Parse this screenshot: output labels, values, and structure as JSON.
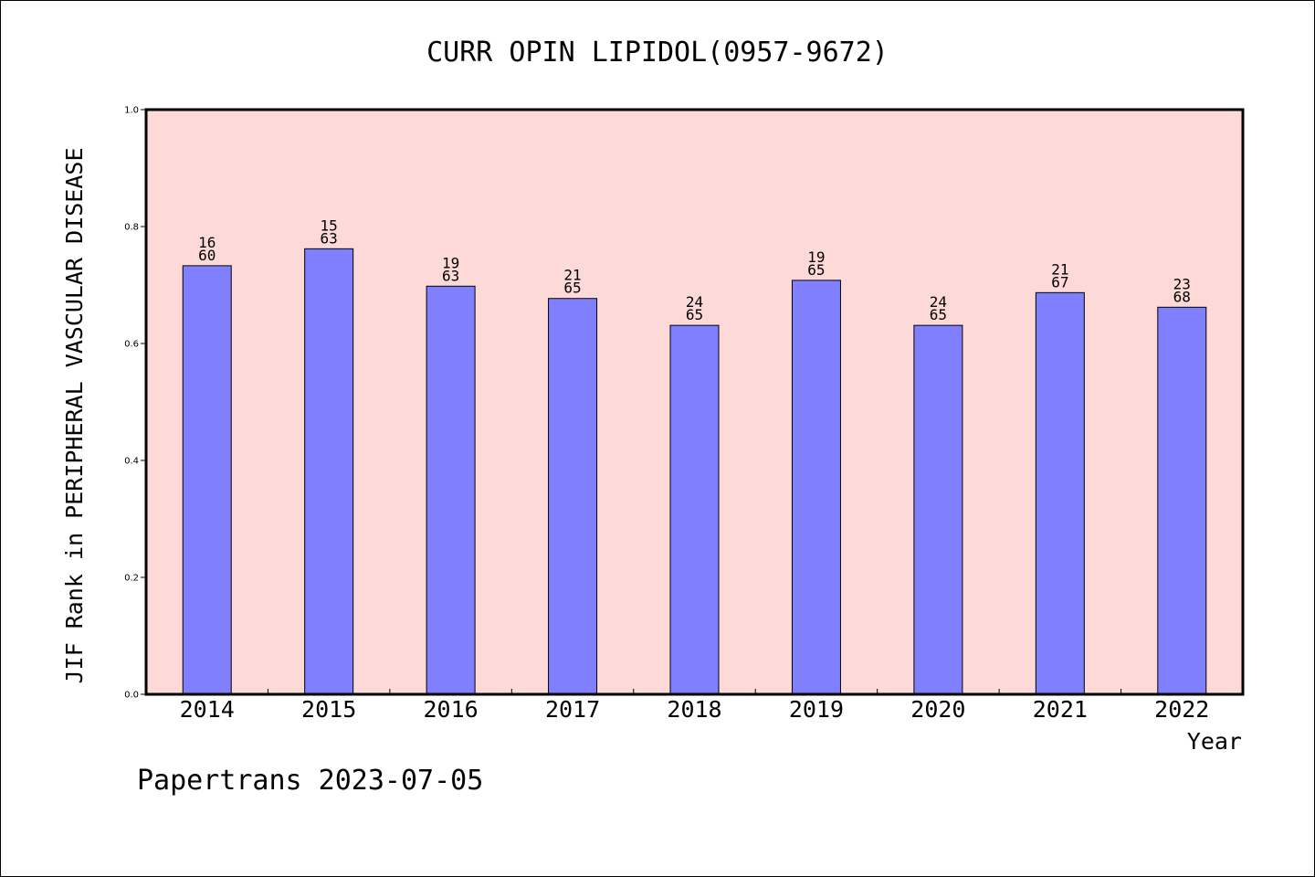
{
  "chart_data": {
    "type": "bar",
    "title": "CURR OPIN LIPIDOL(0957-9672)",
    "xlabel": "Year",
    "ylabel": "JIF Rank in PERIPHERAL VASCULAR DISEASE",
    "ylim": [
      0,
      1.0
    ],
    "yticks": [
      "0.0",
      "0.2",
      "0.4",
      "0.6",
      "0.8",
      "1.0"
    ],
    "categories": [
      "2014",
      "2015",
      "2016",
      "2017",
      "2018",
      "2019",
      "2020",
      "2021",
      "2022"
    ],
    "values": [
      0.733,
      0.762,
      0.698,
      0.677,
      0.631,
      0.708,
      0.631,
      0.687,
      0.662
    ],
    "ranks": [
      "16",
      "15",
      "19",
      "21",
      "24",
      "19",
      "24",
      "21",
      "23"
    ],
    "totals": [
      "60",
      "63",
      "63",
      "65",
      "65",
      "65",
      "65",
      "67",
      "68"
    ],
    "grid": false,
    "legend": "none",
    "colors": {
      "bar": "#8080ff",
      "plot_bg": "#fddad7",
      "axis": "#000000"
    }
  },
  "footer": "Papertrans 2023-07-05"
}
